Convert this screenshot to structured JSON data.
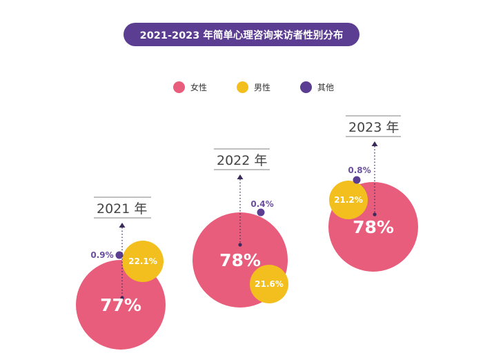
{
  "colors": {
    "title_bg": "#5b3d91",
    "female": "#e85d7c",
    "male": "#f2bf1f",
    "other": "#5b3d91"
  },
  "chart_data": {
    "type": "bubble",
    "title": "2021-2023 年简单心理咨询来访者性别分布",
    "legend": [
      "女性",
      "男性",
      "其他"
    ],
    "categories": [
      "2021 年",
      "2022 年",
      "2023 年"
    ],
    "series": [
      {
        "name": "女性",
        "values": [
          77,
          78,
          78
        ],
        "labels": [
          "77%",
          "78%",
          "78%"
        ]
      },
      {
        "name": "男性",
        "values": [
          22.1,
          21.6,
          21.2
        ],
        "labels": [
          "22.1%",
          "21.6%",
          "21.2%"
        ]
      },
      {
        "name": "其他",
        "values": [
          0.9,
          0.4,
          0.8
        ],
        "labels": [
          "0.9%",
          "0.4%",
          "0.8%"
        ]
      }
    ],
    "unit": "%"
  }
}
